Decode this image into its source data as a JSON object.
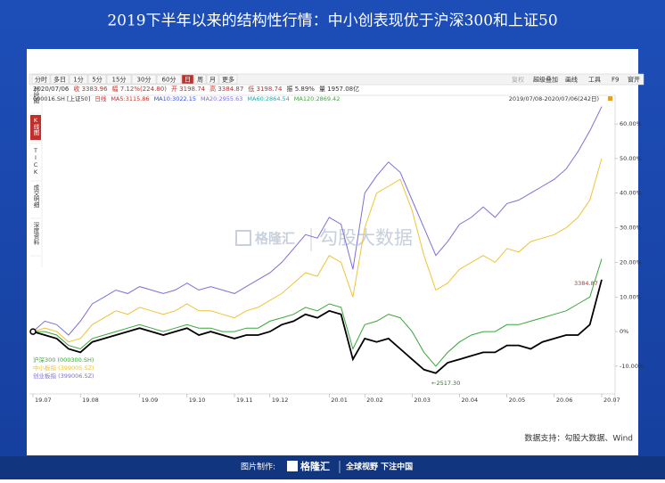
{
  "header": {
    "title": "2019下半年以来的结构性行情：中小创表现优于沪深300和上证50"
  },
  "toolbar": {
    "left": [
      "分时",
      "多日",
      "1分",
      "5分",
      "15分",
      "30分",
      "60分",
      "日",
      "周",
      "月",
      "更多"
    ],
    "right": [
      "复权",
      "超级叠加",
      "画线",
      "工具",
      "F9",
      "窗开"
    ]
  },
  "sidebar": [
    "分时图",
    "K线图",
    "TICK",
    "成交明细",
    "深度资料"
  ],
  "info": [
    "2020/07/06",
    "收 3383.96",
    "幅 7.12%(224.80)",
    "开 3198.74",
    "高 3384.87",
    "低 3198.74",
    "振 5.89%",
    "量 1957.08亿"
  ],
  "ma_line": [
    "000016.SH [上证50]",
    "日线",
    "MA5:3115.86",
    "MA10:3022.15",
    "MA20:2955.63",
    "MA60:2864.54",
    "MA120:2869.42"
  ],
  "range_label": "2019/07/08-2020/07/06(242日)",
  "watermark": [
    "格隆汇",
    "勾股大数据"
  ],
  "source": "数据支持：勾股大数据、Wind",
  "footer": [
    "图片制作:",
    "格隆汇",
    "全球视野 下注中国"
  ],
  "chart_data": {
    "type": "line",
    "categories": [
      "19.07",
      null,
      null,
      null,
      "19.08",
      null,
      null,
      null,
      null,
      "19.09",
      null,
      null,
      null,
      "19.10",
      null,
      null,
      null,
      "19.11",
      null,
      null,
      "19.12",
      null,
      null,
      null,
      null,
      "20.01",
      null,
      null,
      "20.02",
      null,
      null,
      null,
      "20.03",
      null,
      null,
      null,
      "20.04",
      null,
      null,
      null,
      "20.05",
      null,
      null,
      null,
      "20.06",
      null,
      null,
      null,
      "20.07"
    ],
    "series": [
      {
        "name": "沪深300 (000300.SH)",
        "color": "#3aa63a",
        "values": [
          0,
          0,
          -1,
          -4,
          -5,
          -2,
          -1,
          0,
          1,
          2,
          1,
          0,
          1,
          2,
          1,
          1,
          0,
          0,
          1,
          1,
          3,
          4,
          5,
          7,
          6,
          8,
          7,
          -5,
          2,
          3,
          5,
          4,
          0,
          -6,
          -10,
          -6,
          -3,
          -1,
          0,
          0,
          2,
          2,
          3,
          4,
          5,
          6,
          8,
          10,
          21
        ]
      },
      {
        "name": "中小板指 (399005.SZ)",
        "color": "#efc23a",
        "values": [
          0,
          1,
          0,
          -3,
          -2,
          2,
          4,
          6,
          5,
          7,
          6,
          5,
          6,
          8,
          6,
          6,
          5,
          4,
          6,
          7,
          9,
          11,
          14,
          17,
          16,
          22,
          20,
          10,
          30,
          40,
          42,
          44,
          35,
          22,
          12,
          14,
          18,
          20,
          22,
          20,
          24,
          23,
          26,
          27,
          28,
          30,
          33,
          38,
          50
        ]
      },
      {
        "name": "创业板指 (399006.SZ)",
        "color": "#7d6fd6",
        "values": [
          0,
          3,
          2,
          -1,
          3,
          8,
          10,
          12,
          11,
          13,
          12,
          11,
          12,
          14,
          12,
          13,
          12,
          11,
          13,
          15,
          17,
          20,
          24,
          28,
          27,
          33,
          31,
          18,
          40,
          45,
          49,
          46,
          38,
          30,
          22,
          26,
          31,
          33,
          36,
          33,
          37,
          38,
          40,
          42,
          44,
          47,
          52,
          58,
          65
        ]
      },
      {
        "color": "#000000",
        "values": [
          0,
          -1,
          -2,
          -5,
          -6,
          -3,
          -2,
          -1,
          0,
          1,
          0,
          -1,
          0,
          1,
          -1,
          0,
          -1,
          -2,
          -1,
          -1,
          0,
          2,
          3,
          5,
          4,
          6,
          5,
          -8,
          -2,
          -3,
          -2,
          -5,
          -8,
          -11,
          -12,
          -9,
          -8,
          -7,
          -6,
          -6,
          -4,
          -4,
          -5,
          -3,
          -2,
          -1,
          -1,
          2,
          15
        ]
      }
    ],
    "ylim": [
      -18,
      68
    ],
    "yticks": [
      {
        "value": -10,
        "label": "-10.00%"
      },
      {
        "value": 0,
        "label": "0%"
      },
      {
        "value": 10,
        "label": "10.00%"
      },
      {
        "value": 20,
        "label": "20.00%"
      },
      {
        "value": 30,
        "label": "30.00%"
      },
      {
        "value": 40,
        "label": "40.00%"
      },
      {
        "value": 50,
        "label": "50.00%"
      },
      {
        "value": 60,
        "label": "60.00%"
      }
    ],
    "annotations": [
      "3384.87",
      "←2517.30"
    ]
  }
}
